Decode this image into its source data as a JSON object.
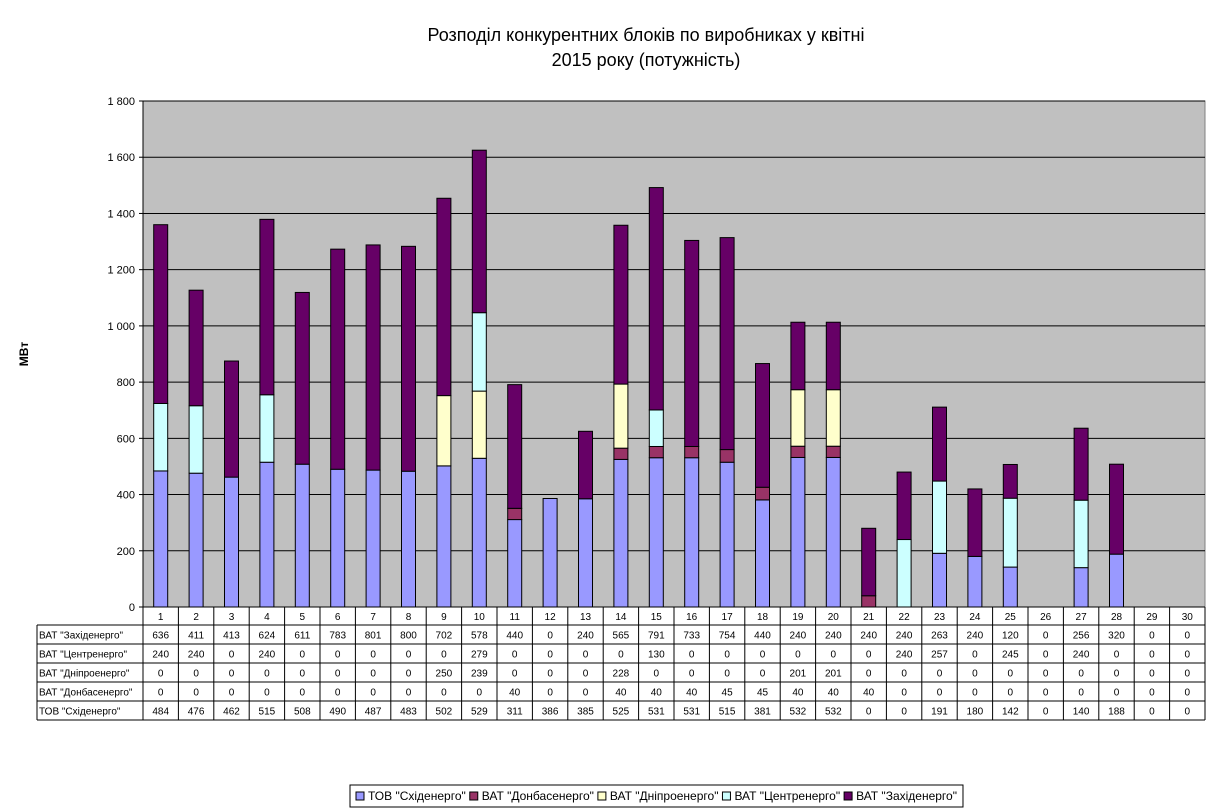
{
  "chart_data": {
    "type": "bar",
    "stacked": true,
    "title_line1": "Розподіл конкурентних блоків по виробниках у квітні",
    "title_line2": "2015 року (потужність)",
    "ylabel": "МВт",
    "ylim": [
      0,
      1800
    ],
    "yticks": [
      0,
      200,
      400,
      600,
      800,
      1000,
      1200,
      1400,
      1600,
      1800
    ],
    "ytick_labels": [
      "0",
      "200",
      "400",
      "600",
      "800",
      "1 000",
      "1 200",
      "1 400",
      "1 600",
      "1 800"
    ],
    "grid": true,
    "legend_position": "bottom",
    "categories": [
      "1",
      "2",
      "3",
      "4",
      "5",
      "6",
      "7",
      "8",
      "9",
      "10",
      "11",
      "12",
      "13",
      "14",
      "15",
      "16",
      "17",
      "18",
      "19",
      "20",
      "21",
      "22",
      "23",
      "24",
      "25",
      "26",
      "27",
      "28",
      "29",
      "30"
    ],
    "series": [
      {
        "name": "ТОВ \"Східенерго\"",
        "color": "#9999ff",
        "values": [
          484,
          476,
          462,
          515,
          508,
          490,
          487,
          483,
          502,
          529,
          311,
          386,
          385,
          525,
          531,
          531,
          515,
          381,
          532,
          532,
          0,
          0,
          191,
          180,
          142,
          0,
          140,
          188,
          0,
          0
        ]
      },
      {
        "name": "ВАТ \"Донбасенерго\"",
        "color": "#993366",
        "values": [
          0,
          0,
          0,
          0,
          0,
          0,
          0,
          0,
          0,
          0,
          40,
          0,
          0,
          40,
          40,
          40,
          45,
          45,
          40,
          40,
          40,
          0,
          0,
          0,
          0,
          0,
          0,
          0,
          0,
          0
        ]
      },
      {
        "name": "ВАТ \"Дніпроенерго\"",
        "color": "#ffffcc",
        "values": [
          0,
          0,
          0,
          0,
          0,
          0,
          0,
          0,
          250,
          239,
          0,
          0,
          0,
          228,
          0,
          0,
          0,
          0,
          201,
          201,
          0,
          0,
          0,
          0,
          0,
          0,
          0,
          0,
          0,
          0
        ]
      },
      {
        "name": "ВАТ \"Центренерго\"",
        "color": "#ccffff",
        "values": [
          240,
          240,
          0,
          240,
          0,
          0,
          0,
          0,
          0,
          279,
          0,
          0,
          0,
          0,
          130,
          0,
          0,
          0,
          0,
          0,
          0,
          240,
          257,
          0,
          245,
          0,
          240,
          0,
          0,
          0
        ]
      },
      {
        "name": "ВАТ \"Західенерго\"",
        "color": "#660066",
        "values": [
          636,
          411,
          413,
          624,
          611,
          783,
          801,
          800,
          702,
          578,
          440,
          0,
          240,
          565,
          791,
          733,
          754,
          440,
          240,
          240,
          240,
          240,
          263,
          240,
          120,
          0,
          256,
          320,
          0,
          0
        ]
      }
    ],
    "table_row_order": [
      4,
      3,
      2,
      1,
      0
    ],
    "legend_order": [
      0,
      1,
      2,
      3,
      4
    ]
  }
}
